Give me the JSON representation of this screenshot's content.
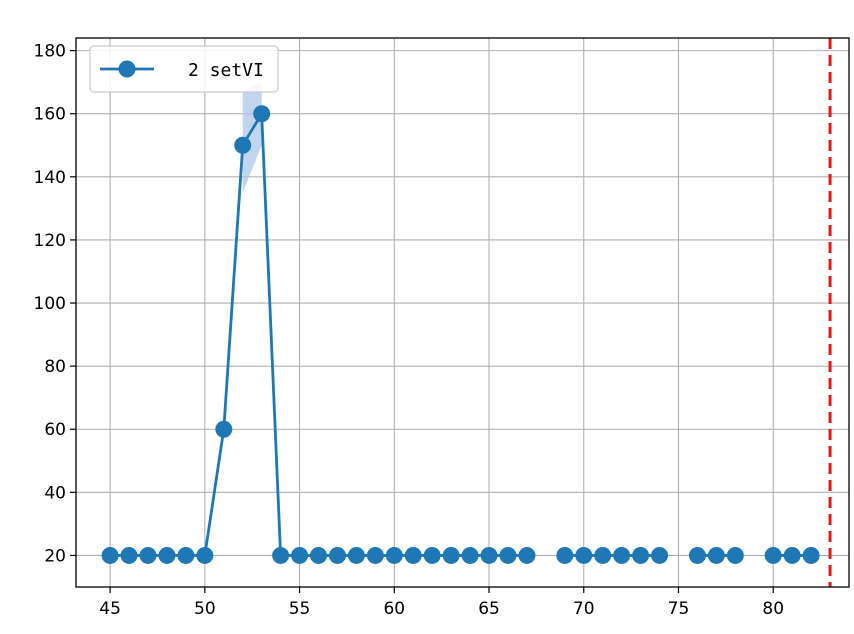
{
  "chart_data": {
    "type": "line",
    "title": "",
    "xlabel": "",
    "ylabel": "",
    "xlim": [
      43.2,
      84.0
    ],
    "ylim": [
      10,
      184
    ],
    "xticks": [
      45,
      50,
      55,
      60,
      65,
      70,
      75,
      80
    ],
    "yticks": [
      20,
      40,
      60,
      80,
      100,
      120,
      140,
      160,
      180
    ],
    "grid": true,
    "legend_position": "top-left",
    "colors": {
      "series": "#1f77b4",
      "band": "#aec7e8",
      "vline": "#e31a1c",
      "grid": "#b0b0b0"
    },
    "series": [
      {
        "name": "2 setVI",
        "marker": "circle",
        "segments": [
          {
            "x": [
              45,
              46,
              47,
              48,
              49,
              50,
              51,
              52,
              53,
              54,
              55,
              56,
              57,
              58,
              59,
              60,
              61,
              62,
              63,
              64,
              65,
              66,
              67
            ],
            "y": [
              20,
              20,
              20,
              20,
              20,
              20,
              60,
              150,
              160,
              20,
              20,
              20,
              20,
              20,
              20,
              20,
              20,
              20,
              20,
              20,
              20,
              20,
              20
            ]
          },
          {
            "x": [
              69,
              70,
              71,
              72,
              73,
              74
            ],
            "y": [
              20,
              20,
              20,
              20,
              20,
              20
            ]
          },
          {
            "x": [
              76,
              77,
              78
            ],
            "y": [
              20,
              20,
              20
            ]
          },
          {
            "x": [
              80,
              81,
              82
            ],
            "y": [
              20,
              20,
              20
            ]
          }
        ],
        "confidence_band": {
          "x": [
            52,
            53
          ],
          "lower": [
            135,
            150
          ],
          "upper": [
            167,
            170
          ]
        }
      }
    ],
    "vline": {
      "x": 83,
      "style": "dashed"
    }
  }
}
